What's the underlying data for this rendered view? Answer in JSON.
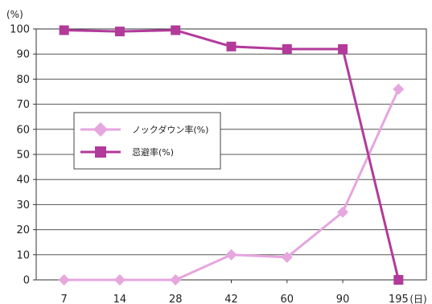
{
  "chart_data": {
    "type": "line",
    "y_unit": "(%)",
    "x_unit": "(日)",
    "categories": [
      "7",
      "14",
      "28",
      "42",
      "60",
      "90",
      "195"
    ],
    "ylim": [
      0,
      100
    ],
    "yticks": [
      0,
      10,
      20,
      30,
      40,
      50,
      60,
      70,
      80,
      90,
      100
    ],
    "grid": true,
    "legend_position": "center-left",
    "series": [
      {
        "name": "ノックダウン率(%)",
        "marker": "diamond",
        "color": "#E6A6DE",
        "values": [
          0,
          0,
          0,
          10,
          9,
          27,
          76
        ]
      },
      {
        "name": "忌避率(%)",
        "marker": "square",
        "color": "#B23A9A",
        "values": [
          99.5,
          99,
          99.5,
          93,
          92,
          92,
          0
        ]
      }
    ]
  }
}
